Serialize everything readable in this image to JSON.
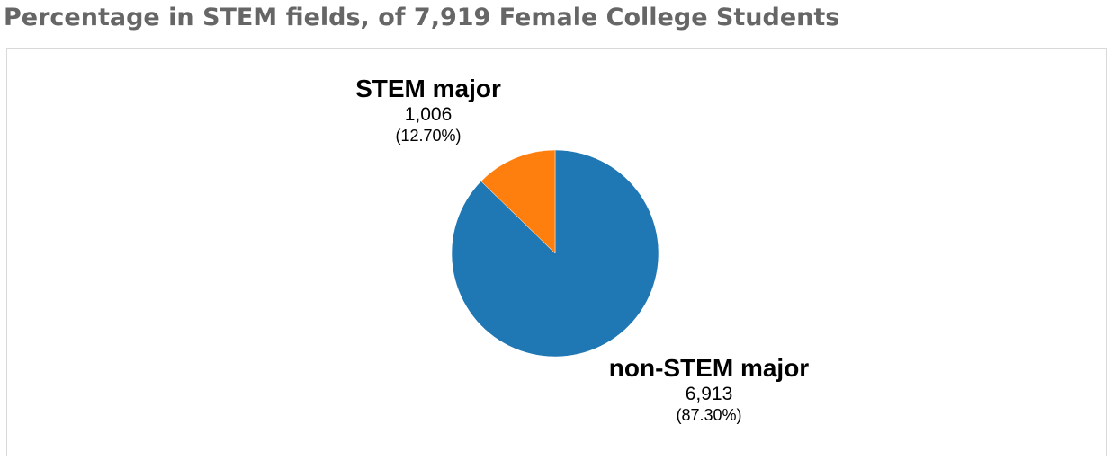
{
  "chart_data": {
    "type": "pie",
    "title": "Percentage in STEM fields, of 7,919 Female College Students",
    "slices": [
      {
        "label": "non-STEM major",
        "value": 6913,
        "value_text": "6,913",
        "percent_text": "(87.30%)",
        "color": "#1f77b4"
      },
      {
        "label": "STEM major",
        "value": 1006,
        "value_text": "1,006",
        "percent_text": "(12.70%)",
        "color": "#ff7f0e"
      }
    ],
    "legend": "none",
    "grid": false
  }
}
